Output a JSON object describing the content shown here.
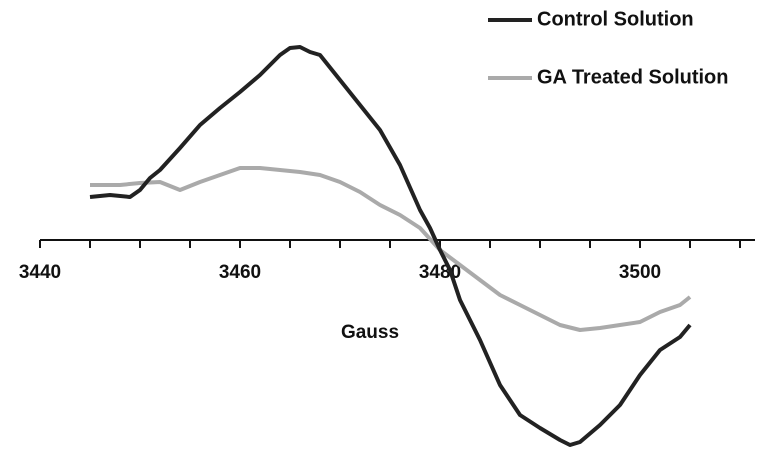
{
  "chart_data": {
    "type": "line",
    "x_label": "Gauss",
    "xlim": [
      3440,
      3511.5
    ],
    "ylim": [
      -220,
      220
    ],
    "xticks": [
      3440,
      3460,
      3480,
      3500
    ],
    "xminorticks": [
      3445,
      3450,
      3455,
      3465,
      3470,
      3475,
      3485,
      3490,
      3495,
      3505,
      3510
    ],
    "legend": "top-right",
    "series": [
      {
        "name": "Control Solution",
        "color": "#222222",
        "x": [
          3445,
          3447,
          3449,
          3450,
          3451,
          3452,
          3454,
          3456,
          3458,
          3460,
          3462,
          3464,
          3465,
          3466,
          3467,
          3468,
          3470,
          3472,
          3474,
          3476,
          3478,
          3479,
          3480,
          3481,
          3482,
          3484,
          3486,
          3488,
          3490,
          3492,
          3493,
          3494,
          3496,
          3498,
          3500,
          3502,
          3504,
          3505
        ],
        "values": [
          43,
          45,
          43,
          50,
          62,
          70,
          92,
          115,
          132,
          148,
          165,
          185,
          192,
          193,
          188,
          185,
          160,
          135,
          110,
          75,
          30,
          12,
          -10,
          -30,
          -60,
          -100,
          -145,
          -175,
          -188,
          -200,
          -205,
          -202,
          -185,
          -165,
          -135,
          -110,
          -97,
          -85
        ]
      },
      {
        "name": "GA Treated Solution",
        "color": "#aaaaaa",
        "x": [
          3445,
          3448,
          3450,
          3452,
          3454,
          3456,
          3458,
          3460,
          3462,
          3464,
          3466,
          3468,
          3470,
          3472,
          3474,
          3476,
          3478,
          3480,
          3482,
          3484,
          3486,
          3488,
          3490,
          3492,
          3494,
          3496,
          3498,
          3500,
          3502,
          3504,
          3505
        ],
        "values": [
          55,
          55,
          57,
          58,
          50,
          58,
          65,
          72,
          72,
          70,
          68,
          65,
          58,
          48,
          35,
          25,
          12,
          -10,
          -25,
          -40,
          -55,
          -65,
          -75,
          -85,
          -90,
          -88,
          -85,
          -82,
          -72,
          -65,
          -57
        ]
      }
    ]
  }
}
